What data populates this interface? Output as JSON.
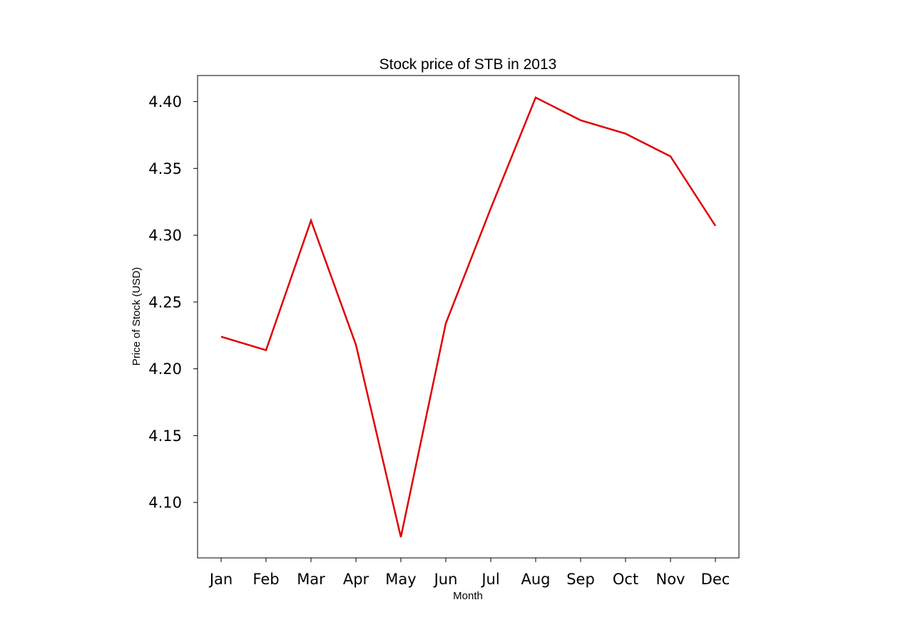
{
  "chart_data": {
    "type": "line",
    "title": "Stock price of STB in 2013",
    "xlabel": "Month",
    "ylabel": "Price of Stock (USD)",
    "categories": [
      "Jan",
      "Feb",
      "Mar",
      "Apr",
      "May",
      "Jun",
      "Jul",
      "Aug",
      "Sep",
      "Oct",
      "Nov",
      "Dec"
    ],
    "series": [
      {
        "color": "#e00000",
        "values": [
          4.224,
          4.214,
          4.311,
          4.218,
          4.074,
          4.234,
          4.32,
          4.403,
          4.386,
          4.376,
          4.359,
          4.307
        ]
      }
    ],
    "yticks": [
      "4.10",
      "4.15",
      "4.20",
      "4.25",
      "4.30",
      "4.35",
      "4.40"
    ],
    "ylim": [
      4.0585,
      4.4195
    ],
    "grid": false,
    "legend": "none"
  }
}
